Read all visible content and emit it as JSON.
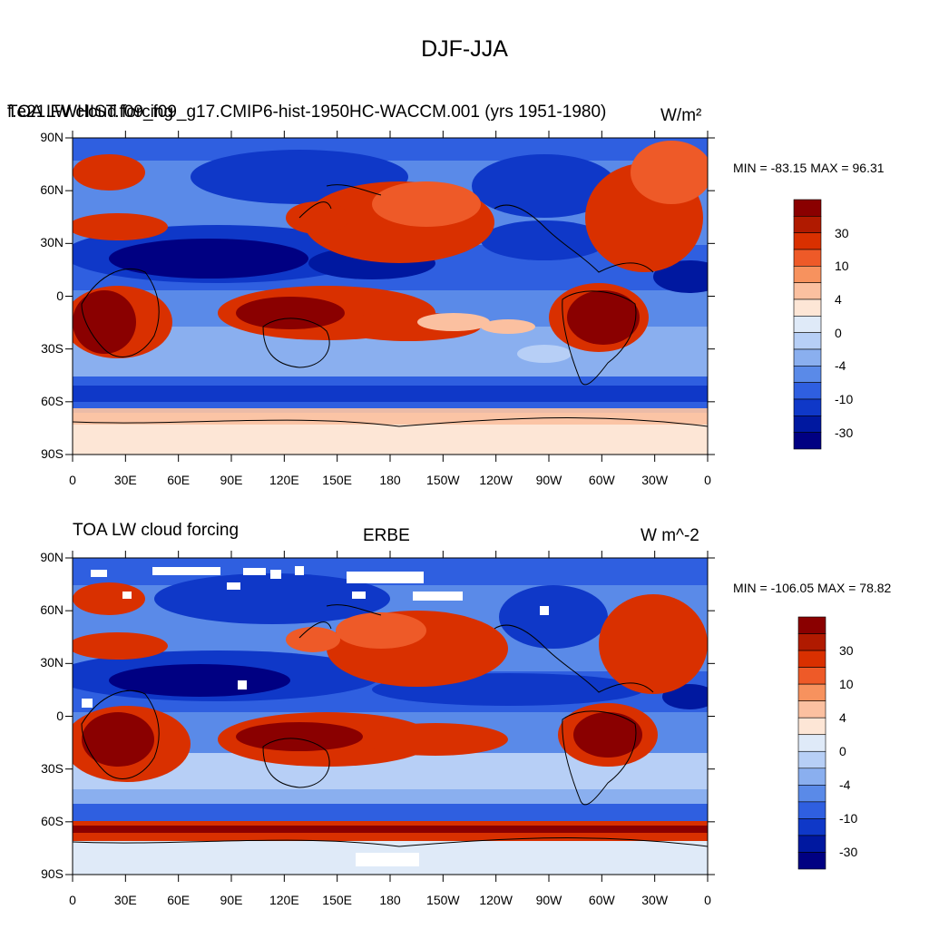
{
  "figure_title": "DJF-JJA",
  "lon_ticks": [
    "0",
    "30E",
    "60E",
    "90E",
    "120E",
    "150E",
    "180",
    "150W",
    "120W",
    "90W",
    "60W",
    "30W",
    "0"
  ],
  "lat_ticks": [
    "90N",
    "60N",
    "30N",
    "0",
    "30S",
    "60S",
    "90S"
  ],
  "colorbar_labels": [
    "30",
    "10",
    "4",
    "0",
    "-4",
    "-10",
    "-30"
  ],
  "colors": {
    "bins": [
      "#8a0000",
      "#b01a00",
      "#d93000",
      "#ee5a28",
      "#f7925e",
      "#fbc0a0",
      "#fde6d6",
      "#dfeaf8",
      "#b7cff6",
      "#8aafef",
      "#5a8ae8",
      "#2f5fe0",
      "#0f38c8",
      "#0018a0",
      "#000082"
    ],
    "ocean_neutral": "#fde6d6"
  },
  "panels": [
    {
      "id": "model",
      "left_title": "TOA LW cloud forcing",
      "center_title": "f.e21.FWHIST.f09_f09_g17.CMIP6-hist-1950HC-WACCM.001 (yrs 1951-1980)",
      "units": "W/m²",
      "stats": "MIN = -83.15 MAX =  96.31"
    },
    {
      "id": "obs",
      "left_title": "TOA LW cloud forcing",
      "center_title": "ERBE",
      "units": "W m^-2",
      "stats": "MIN = -106.05 MAX =  78.82"
    }
  ],
  "icons": [
    "coastline-outline"
  ]
}
